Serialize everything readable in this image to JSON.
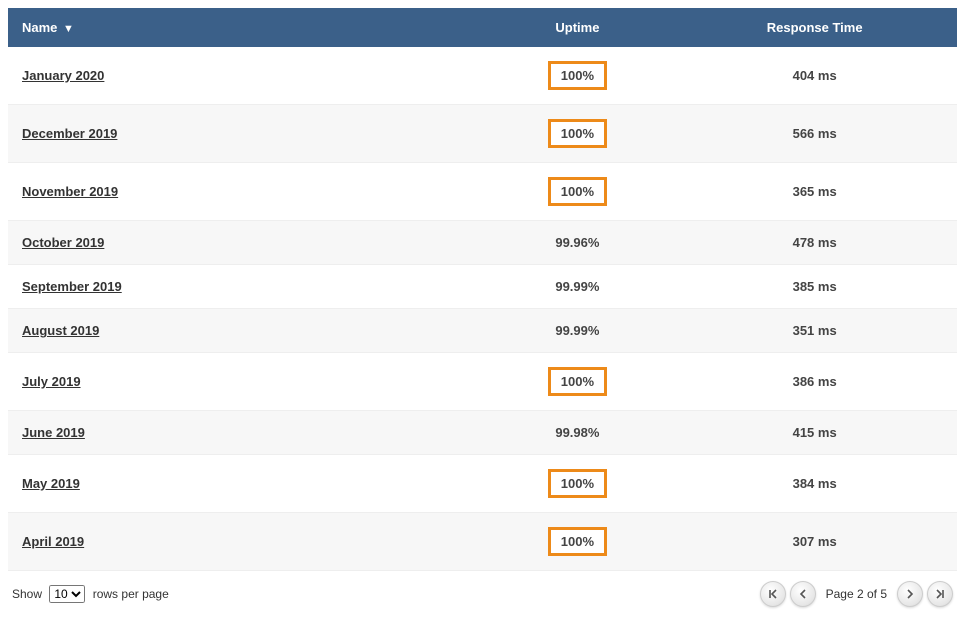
{
  "table": {
    "columns": {
      "name": "Name",
      "uptime": "Uptime",
      "response": "Response Time"
    },
    "sort_indicator": "▼",
    "header_bg": "#3b6089",
    "header_fg": "#ffffff",
    "row_alt_bg": "#f7f7f7",
    "highlight_border_color": "#ed8a19",
    "rows": [
      {
        "name": "January 2020",
        "uptime": "100%",
        "highlight": true,
        "response": "404 ms"
      },
      {
        "name": "December 2019",
        "uptime": "100%",
        "highlight": true,
        "response": "566 ms"
      },
      {
        "name": "November 2019",
        "uptime": "100%",
        "highlight": true,
        "response": "365 ms"
      },
      {
        "name": "October 2019",
        "uptime": "99.96%",
        "highlight": false,
        "response": "478 ms"
      },
      {
        "name": "September 2019",
        "uptime": "99.99%",
        "highlight": false,
        "response": "385 ms"
      },
      {
        "name": "August 2019",
        "uptime": "99.99%",
        "highlight": false,
        "response": "351 ms"
      },
      {
        "name": "July 2019",
        "uptime": "100%",
        "highlight": true,
        "response": "386 ms"
      },
      {
        "name": "June 2019",
        "uptime": "99.98%",
        "highlight": false,
        "response": "415 ms"
      },
      {
        "name": "May 2019",
        "uptime": "100%",
        "highlight": true,
        "response": "384 ms"
      },
      {
        "name": "April 2019",
        "uptime": "100%",
        "highlight": true,
        "response": "307 ms"
      }
    ]
  },
  "footer": {
    "show_label_pre": "Show",
    "show_label_post": "rows per page",
    "page_size_selected": "10",
    "page_size_options": [
      "10"
    ],
    "page_text": "Page 2 of 5"
  }
}
